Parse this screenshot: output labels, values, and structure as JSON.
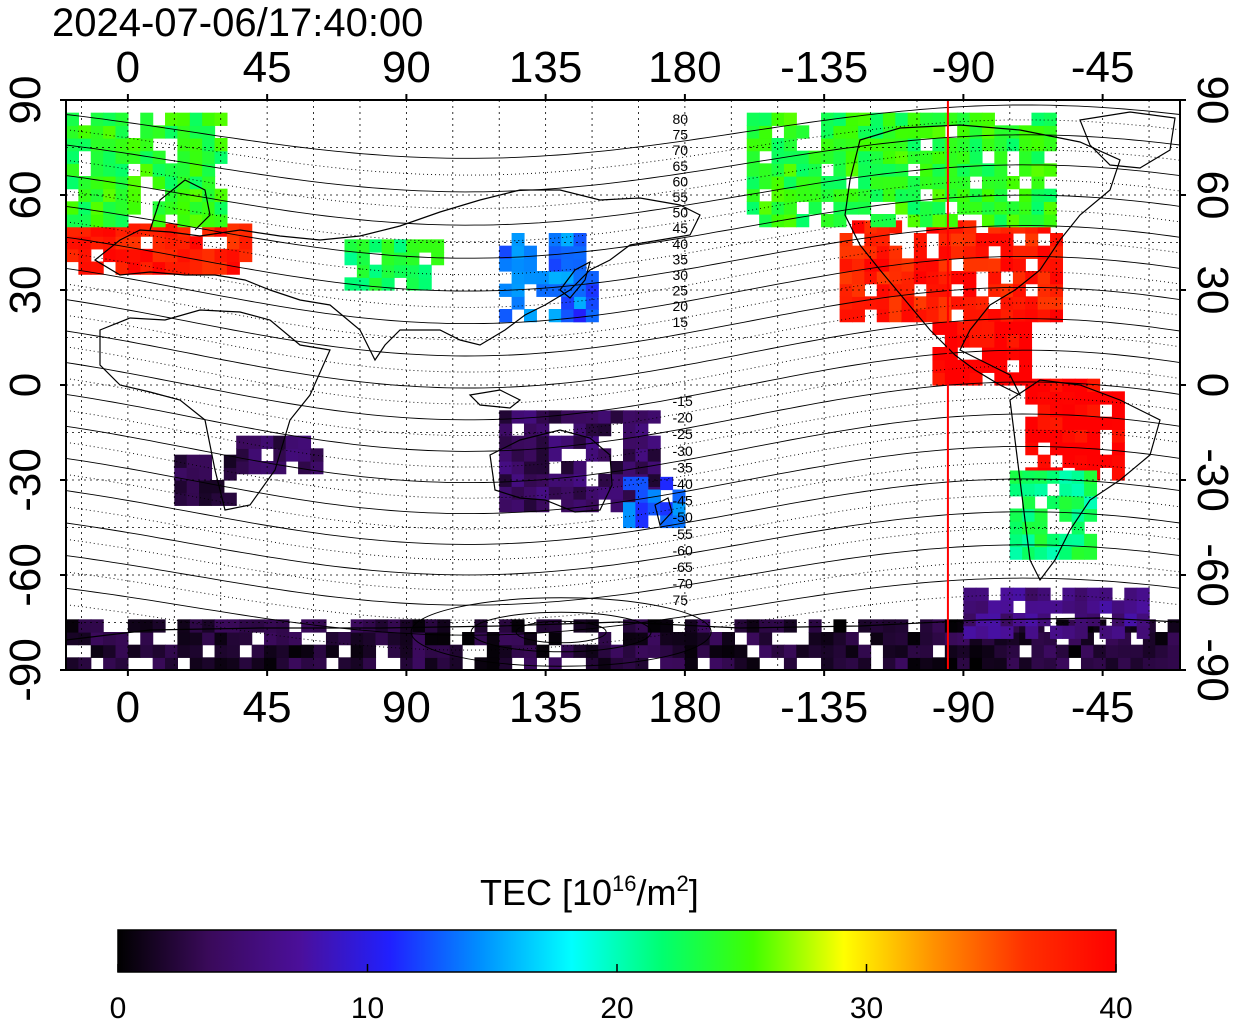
{
  "title": "2024-07-06/17:40:00",
  "map": {
    "lon_ticks_top": [
      "0",
      "45",
      "90",
      "135",
      "180",
      "-135",
      "-90",
      "-45"
    ],
    "lon_ticks_bottom": [
      "0",
      "45",
      "90",
      "135",
      "180",
      "-135",
      "-90",
      "-45"
    ],
    "lon_values": [
      0,
      45,
      90,
      135,
      180,
      225,
      270,
      315
    ],
    "lat_ticks_left": [
      "90",
      "60",
      "30",
      "0",
      "-30",
      "-60",
      "-90"
    ],
    "lat_ticks_right": [
      "90",
      "60",
      "30",
      "0",
      "-30",
      "-60",
      "-90"
    ],
    "lat_values": [
      90,
      60,
      30,
      0,
      -30,
      -60,
      -90
    ],
    "lon_range": [
      -20,
      340
    ],
    "lat_range": [
      -90,
      90
    ],
    "terminator_longitude": -95,
    "terminator_color": "#ff0000",
    "contour_labels_north": [
      "80",
      "75",
      "70",
      "65",
      "60",
      "55",
      "50",
      "45",
      "40",
      "35",
      "30",
      "25",
      "20",
      "15"
    ],
    "contour_labels_south": [
      "-15",
      "-20",
      "-25",
      "-30",
      "-35",
      "-40",
      "-45",
      "-50",
      "-55",
      "-60",
      "-65",
      "-70",
      "75"
    ],
    "grid": true
  },
  "colorbar": {
    "title_prefix": "TEC  [10",
    "title_sup1": "16",
    "title_mid": "/m",
    "title_sup2": "2",
    "title_suffix": "]",
    "min": 0,
    "max": 40,
    "tick_labels": [
      "0",
      "10",
      "20",
      "30",
      "40"
    ],
    "tick_values": [
      0,
      10,
      20,
      30,
      40
    ],
    "colors": [
      "#000000",
      "#3a0a5a",
      "#4b0f9a",
      "#2020ff",
      "#0090ff",
      "#00ffff",
      "#00ff70",
      "#40ff00",
      "#ffff00",
      "#ff9000",
      "#ff3000",
      "#ff0000"
    ]
  },
  "chart_data": {
    "type": "heatmap",
    "title": "2024-07-06/17:40:00",
    "xlabel": "",
    "ylabel": "",
    "x_range": [
      -20,
      340
    ],
    "y_range": [
      -90,
      90
    ],
    "value_range": [
      0,
      40
    ],
    "regions": [
      {
        "lon": [
          -20,
          40
        ],
        "lat": [
          35,
          50
        ],
        "tec": 38
      },
      {
        "lon": [
          -20,
          30
        ],
        "lat": [
          50,
          85
        ],
        "tec": 24
      },
      {
        "lon": [
          70,
          100
        ],
        "lat": [
          30,
          45
        ],
        "tec": 23
      },
      {
        "lon": [
          120,
          145
        ],
        "lat": [
          20,
          45
        ],
        "tec": 14
      },
      {
        "lon": [
          140,
          150
        ],
        "lat": [
          20,
          35
        ],
        "tec": 12
      },
      {
        "lon": [
          15,
          35
        ],
        "lat": [
          -38,
          -25
        ],
        "tec": 3
      },
      {
        "lon": [
          35,
          60
        ],
        "lat": [
          -28,
          -18
        ],
        "tec": 4
      },
      {
        "lon": [
          120,
          170
        ],
        "lat": [
          -40,
          -10
        ],
        "tec": 4
      },
      {
        "lon": [
          160,
          180
        ],
        "lat": [
          -45,
          -30
        ],
        "tec": 13
      },
      {
        "lon": [
          230,
          300
        ],
        "lat": [
          20,
          50
        ],
        "tec": 38
      },
      {
        "lon": [
          260,
          290
        ],
        "lat": [
          0,
          20
        ],
        "tec": 40
      },
      {
        "lon": [
          290,
          320
        ],
        "lat": [
          -30,
          0
        ],
        "tec": 40
      },
      {
        "lon": [
          285,
          310
        ],
        "lat": [
          -55,
          -30
        ],
        "tec": 22
      },
      {
        "lon": [
          200,
          300
        ],
        "lat": [
          50,
          85
        ],
        "tec": 24
      },
      {
        "lon": [
          -20,
          340
        ],
        "lat": [
          -90,
          -75
        ],
        "tec": 2
      },
      {
        "lon": [
          270,
          330
        ],
        "lat": [
          -80,
          -65
        ],
        "tec": 6
      }
    ]
  }
}
